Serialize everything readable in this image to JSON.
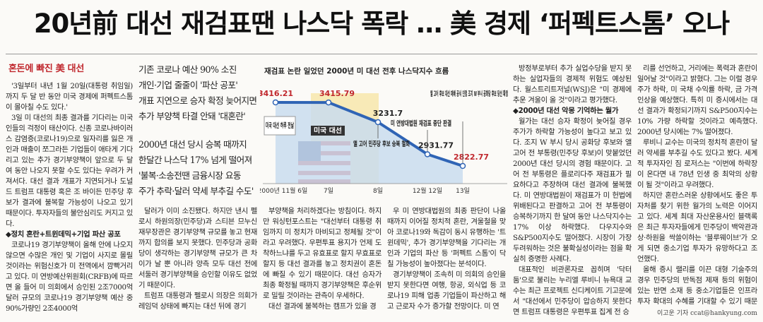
{
  "headline": "20년前 대선 재검표땐 나스닥 폭락 … 美 경제 ‘퍼펙트스톰’ 오나",
  "section_title": "혼돈에 빠진 美 대선",
  "quote_lines": [
    "기존 코로나 예산 90% 소진",
    "개인·기업 줄줄이 '파산 공포'",
    "개표 지연으로 승자 확정 늦어지면",
    "추가 부양책 타결 안돼 '대혼란'",
    "2000년 대선 당시 승복 때까지",
    "한달간 나스닥 17% 넘게 떨어져",
    "'불복·소송전땐 금융시장 요동",
    "주가 추락·달러 약세 부추길 수도'"
  ],
  "columns": [
    [
      "'3일부터 내년 1월 20일(대통령 취임일)까지 두 달 반 동안 미국 경제에 퍼펙트스톰이 몰아칠 수도 있다.'",
      "3일 미 대선의 최종 결과를 기다리는 미국인들의 걱정이 태산이다. 신종 코로나바이러스 감염증(코로나19)으로 일자리를 잃은 개인과 매출이 쪼그라든 기업들이 애타게 기다리고 있는 추가 경기부양책이 앞으로 두 달여 동안 나오지 못할 수도 있다는 우려가 커져서다. 대선 결과 개표가 지연되거나 도널드 트럼프 대통령 혹은 조 바이든 민주당 후보가 결과에 불복할 가능성이 나오고 있기 때문이다. 투자자들의 불안심리도 커지고 있다.",
      "◆정치 혼란+트윈데믹+기업 파산 공포",
      "코로나19 경기부양책이 올해 안에 나오지 않으면 수많은 개인 및 기업이 사지로 몰릴 것이라는 위험신호가 미 전역에서 깜빡거리고 있다. 미 연방예산위원회(CRFB)에 따르면 올 들어 미 의회에서 승인된 2조7000억달러 규모의 코로나19 경기부양책 예산 중 90%가량인 2조4000억"
    ],
    [
      "달러가 이미 소진됐다. 하지만 낸시 펠로시 하원의장(민주당)과 스티븐 므누신 재무장관은 경기부양책 규모를 놓고 현재까지 합의를 보지 못했다. 민주당과 공화당이 생각하는 경기부양책 규모가 큰 차이가 날 뿐 아니라 양측 모두 대선 전에 서둘러 경기부양책을 승인할 이유도 없었기 때문이다.",
      "트럼프 대통령과 펠로시 의장은 의회가 레임덕 상태에 빠지는 대선 뒤에 경기"
    ],
    [
      "부양책을 처리하겠다는 방침이다. 하지만 워싱턴포스트는 \"대선부터 대통령 취임까지 미 정치가 마비되고 정체될 것\"이라고 우려했다. 우편투표 용지가 언제 도착하느냐를 두고 유효표로 할지 무효표로 할지 등 대선 결과를 놓고 정치권이 혼돈에 빠질 수 있기 때문이다. 대선 승자가 최종 확정될 때까지 경기부양책은 후순위로 밀릴 것이라는 관측이 우세하다.",
      "대선 결과에 불복하는 캠프가 있을 경"
    ],
    [
      "우 미 연방대법원의 최종 판단이 나올 때까지 이어질 정치적 혼란, 겨울철을 맞아 코로나19와 독감이 동시 유행하는 '트윈데믹', 추가 경기부양책을 기다리는 개인과 기업의 파산 등 '퍼펙트 스톰'이 닥칠 가능성이 높아졌다는 분석이다.",
      "경기부양책이 조속히 미 의회의 승인을 받지 못한다면 여행, 항공, 외식업 등 코로나19 피해 업종 기업들이 파산하고 해고 근로자 수가 증가할 전망이다. 미 연"
    ],
    [
      "방정부로부터 추가 실업수당을 받지 못하는 실업자들의 경제적 위험도 예상된다. 월스트리트저널(WSJ)은 \"미 경제에 추운 겨울이 올 것\"이라고 평가했다.",
      "◆2000년 대선 악몽 기억하는 월가",
      "월가는 대선 승자 확정이 늦어질 경우 주가가 하락할 가능성이 높다고 보고 있다. 조지 W 부시 당시 공화당 후보와 앨 고어 전 부통령(민주당 후보)이 맞붙었던 2000년 대선 당시의 경험 때문이다. 고어 전 부통령은 플로리다주 재검표가 필요하다고 주장하며 대선 결과에 불복했다. 미 연방대법원이 재검표가 미 헌법에 위배된다고 판결하고 고어 전 부통령이 승복하기까지 한 달여 동안 나스닥지수는 17% 이상 하락했다. 다우지수와 S&P500지수도 떨어졌다. 시장이 가장 두려워하는 것은 불확실성이라는 점을 확실히 증명한 사례다.",
      "대표적인 비관론자로 꼽히며 '닥터 둠'으로 불리는 누리엘 루비니 뉴욕대 교수는 최근 프로젝트 신디케이트 기고문에서 \"대선에서 민주당이 압승하지 못한다면 트럼프 대통령은 우편투표 집계 전 승"
    ],
    [
      "리를 선언하고, 거리에는 폭력과 혼란이 일어날 것\"이라고 밝혔다. 그는 이럴 경우 주가 하락, 미 국채 수익률 하락, 금 가격 인상을 예상했다. 특히 미 증시에서는 대선 결과가 확정되기까지 S&P500지수는 10% 가량 하락할 것이라고 예측했다. 2000년 당시에는 7% 떨어졌다.",
      "루비니 교수는 미국의 정치적 혼란이 달러 약세를 부추길 수도 있다고 봤다. 세계적 투자자인 짐 로저스는 \"이번에 하락장이 온다면 내 78년 인생 중 최악의 상황이 될 것\"이라고 우려했다.",
      "하지만 혼란스러운 상황에서도 좋은 투자처를 찾기 위한 월가의 노력은 이어지고 있다. 세계 최대 자산운용사인 블랙록은 최근 투자자들에게 민주당이 백악관과 상·하원을 싹쓸이하는 '블루웨이브'가 오게 되면 중소기업 투자가 유망하다고 조언했다.",
      "올해 증시 랠리를 이끈 대형 기술주의 경우 민주당의 반독점 제재 등의 위험이 있는 반면 소재 등 중소기업들은 인프라 투자 확대의 수혜를 기대할 수 있기 때문이다."
    ]
  ],
  "byline": "이고운 기자  ccat@hankyung.com",
  "chart_data": {
    "type": "area",
    "title": "재검표 논란 일었던 2000년 미 대선 전후 나스닥지수 흐름",
    "categories": [
      "2000년 11월 6일",
      "7일",
      "8일",
      "12월 12일",
      "13일"
    ],
    "values": [
      3416.21,
      3415.79,
      3231.7,
      2931.77,
      2822.77
    ],
    "color": "#2f64b5",
    "fill": "#c9dcef",
    "annotations": [
      "미국 대선 하루 전날",
      "미국 대선",
      "앨 고어 민주당 후보 승복 철회",
      "미 연방대법원 재검표 중단 판결",
      "앨 고어 후보 대선 패배 공식 인정 조지 W 부시 공화당 후보 당선 확정"
    ]
  }
}
